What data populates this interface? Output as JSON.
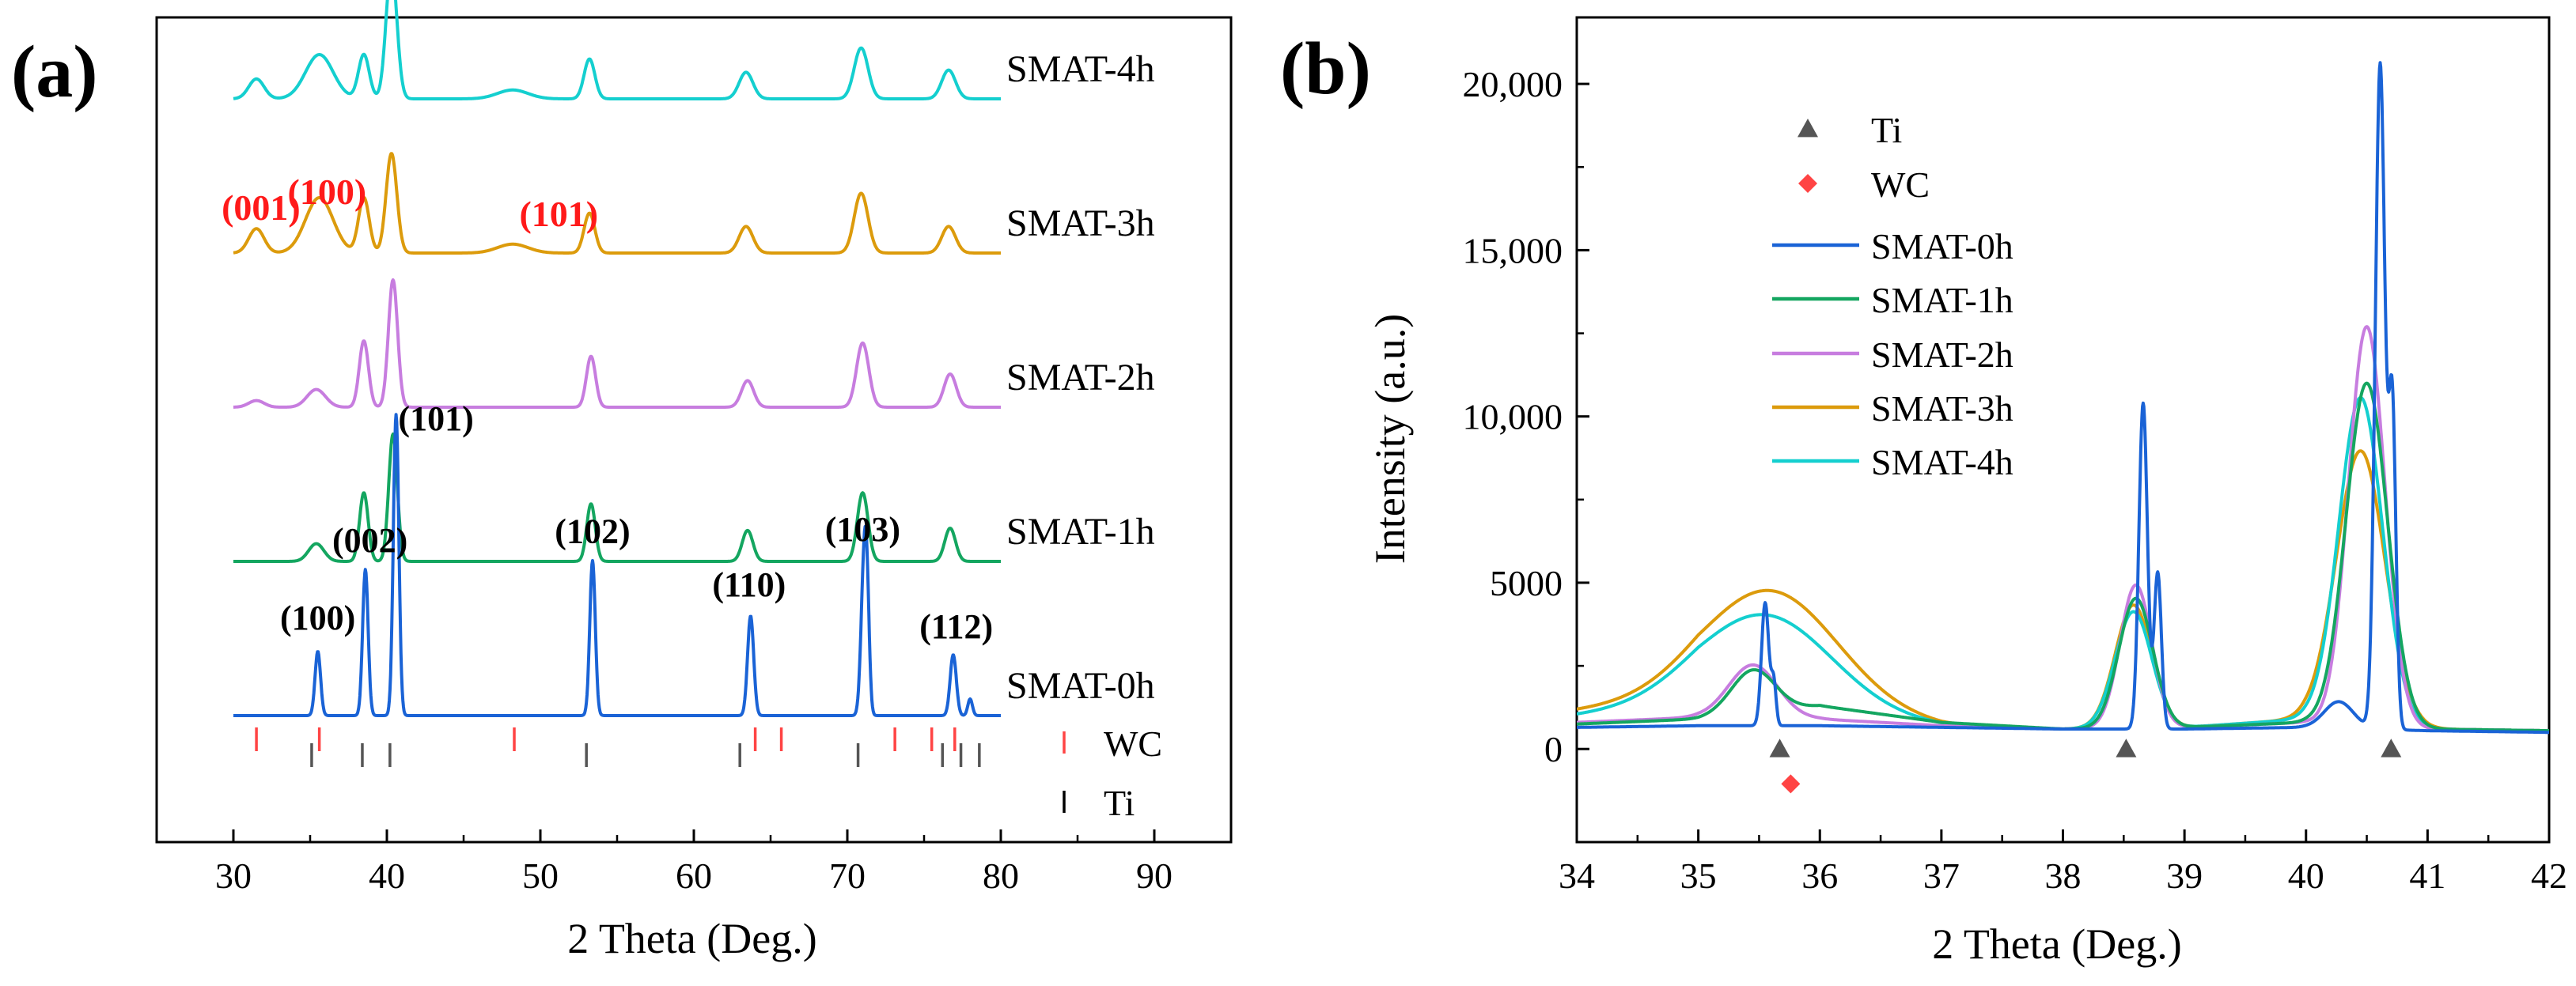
{
  "colors": {
    "SMAT-0h": "#1a63d6",
    "SMAT-1h": "#14a660",
    "SMAT-2h": "#c77ddf",
    "SMAT-3h": "#dc9b0c",
    "SMAT-4h": "#14cfcf",
    "axis": "#000000",
    "hkl_red": "#ff1a1a",
    "ti_mark": "#555555",
    "wc_mark": "#ff4444"
  },
  "chart_data": [
    {
      "type": "line",
      "panel_label": "(a)",
      "title": "",
      "xlabel": "2 Theta (Deg.)",
      "ylabel": "",
      "xlim": [
        25,
        95
      ],
      "x_ticks": [
        30,
        40,
        50,
        60,
        70,
        80,
        90
      ],
      "y_ticks_shown": false,
      "series": [
        {
          "name": "SMAT-4h",
          "key": "SMAT-4h",
          "label": "SMAT-4h",
          "offset": 4,
          "peaks": [
            [
              31.5,
              0.18,
              0.5
            ],
            [
              35.6,
              0.4,
              0.9
            ],
            [
              38.5,
              0.4,
              0.35
            ],
            [
              40.3,
              1.2,
              0.35
            ],
            [
              48.2,
              0.08,
              1.0
            ],
            [
              53.2,
              0.36,
              0.35
            ],
            [
              63.4,
              0.24,
              0.45
            ],
            [
              70.9,
              0.46,
              0.45
            ],
            [
              76.6,
              0.26,
              0.45
            ]
          ]
        },
        {
          "name": "SMAT-3h",
          "key": "SMAT-3h",
          "label": "SMAT-3h",
          "offset": 3,
          "peaks": [
            [
              31.5,
              0.22,
              0.5
            ],
            [
              35.6,
              0.5,
              0.9
            ],
            [
              38.5,
              0.5,
              0.35
            ],
            [
              40.3,
              0.9,
              0.35
            ],
            [
              48.2,
              0.08,
              1.0
            ],
            [
              53.2,
              0.36,
              0.35
            ],
            [
              63.4,
              0.24,
              0.45
            ],
            [
              70.9,
              0.54,
              0.45
            ],
            [
              76.6,
              0.24,
              0.45
            ]
          ]
        },
        {
          "name": "SMAT-2h",
          "key": "SMAT-2h",
          "label": "SMAT-2h",
          "offset": 2,
          "peaks": [
            [
              31.5,
              0.06,
              0.5
            ],
            [
              35.4,
              0.16,
              0.6
            ],
            [
              38.5,
              0.6,
              0.3
            ],
            [
              40.4,
              1.15,
              0.3
            ],
            [
              53.3,
              0.46,
              0.3
            ],
            [
              63.5,
              0.24,
              0.4
            ],
            [
              71.0,
              0.58,
              0.4
            ],
            [
              76.7,
              0.3,
              0.4
            ]
          ]
        },
        {
          "name": "SMAT-1h",
          "key": "SMAT-1h",
          "label": "SMAT-1h",
          "offset": 1,
          "peaks": [
            [
              35.4,
              0.16,
              0.5
            ],
            [
              38.5,
              0.62,
              0.28
            ],
            [
              40.4,
              1.15,
              0.28
            ],
            [
              53.3,
              0.52,
              0.28
            ],
            [
              63.5,
              0.28,
              0.35
            ],
            [
              71.0,
              0.62,
              0.35
            ],
            [
              76.7,
              0.3,
              0.35
            ]
          ]
        },
        {
          "name": "SMAT-0h",
          "key": "SMAT-0h",
          "label": "SMAT-0h",
          "offset": 0,
          "peaks": [
            [
              35.5,
              0.58,
              0.18
            ],
            [
              38.6,
              1.32,
              0.18
            ],
            [
              40.6,
              2.72,
              0.18
            ],
            [
              53.4,
              1.4,
              0.18
            ],
            [
              63.7,
              0.9,
              0.2
            ],
            [
              71.1,
              1.38,
              0.2
            ],
            [
              71.3,
              0.6,
              0.15
            ],
            [
              76.9,
              0.55,
              0.2
            ],
            [
              78.0,
              0.15,
              0.15
            ]
          ]
        }
      ],
      "reference_ticks": [
        {
          "name": "WC",
          "color_key": "wc_mark",
          "positions": [
            31.5,
            35.6,
            48.3,
            64.0,
            65.7,
            73.1,
            75.5,
            77.0
          ]
        },
        {
          "name": "Ti",
          "color_key": "ti_mark",
          "positions": [
            35.1,
            38.4,
            40.2,
            53.0,
            63.0,
            70.7,
            76.2,
            77.4,
            78.6
          ]
        }
      ],
      "annotations": [
        {
          "text": "(001)",
          "x": 31.8,
          "y": 4.48,
          "color_key": "hkl_red",
          "fs": 46
        },
        {
          "text": "(100)",
          "x": 36.1,
          "y": 4.62,
          "color_key": "hkl_red",
          "fs": 46
        },
        {
          "text": "(101)",
          "x": 51.2,
          "y": 4.42,
          "color_key": "hkl_red",
          "fs": 46
        },
        {
          "text": "(100)",
          "x": 35.5,
          "y": 0.78,
          "color_key": "axis",
          "fs": 44
        },
        {
          "text": "(002)",
          "x": 38.9,
          "y": 1.48,
          "color_key": "axis",
          "fs": 44
        },
        {
          "text": "(101)",
          "x": 43.2,
          "y": 2.58,
          "color_key": "axis",
          "fs": 44
        },
        {
          "text": "(102)",
          "x": 53.4,
          "y": 1.56,
          "color_key": "axis",
          "fs": 44
        },
        {
          "text": "(110)",
          "x": 63.6,
          "y": 1.08,
          "color_key": "axis",
          "fs": 44
        },
        {
          "text": "(103)",
          "x": 71.0,
          "y": 1.58,
          "color_key": "axis",
          "fs": 44
        },
        {
          "text": "(112)",
          "x": 77.1,
          "y": 0.7,
          "color_key": "axis",
          "fs": 44
        }
      ],
      "legend": [
        {
          "label": "WC",
          "color_key": "wc_mark"
        },
        {
          "label": "Ti",
          "color_key": "axis"
        }
      ]
    },
    {
      "type": "line",
      "panel_label": "(b)",
      "title": "",
      "xlabel": "2 Theta (Deg.)",
      "ylabel": "Intensity (a.u.)",
      "xlim": [
        34,
        42
      ],
      "ylim": [
        -2800,
        22000
      ],
      "x_ticks": [
        34,
        35,
        36,
        37,
        38,
        39,
        40,
        41,
        42
      ],
      "y_ticks": [
        0,
        5000,
        10000,
        15000,
        20000
      ],
      "y_tick_labels": [
        "0",
        "5000",
        "10,000",
        "15,000",
        "20,000"
      ],
      "legend_position": "top-left",
      "legend": [
        {
          "label": "Ti",
          "symbol": "triangle",
          "color_key": "ti_mark"
        },
        {
          "label": "WC",
          "symbol": "diamond",
          "color_key": "wc_mark"
        },
        {
          "label": "SMAT-0h",
          "symbol": "line",
          "color_key": "SMAT-0h"
        },
        {
          "label": "SMAT-1h",
          "symbol": "line",
          "color_key": "SMAT-1h"
        },
        {
          "label": "SMAT-2h",
          "symbol": "line",
          "color_key": "SMAT-2h"
        },
        {
          "label": "SMAT-3h",
          "symbol": "line",
          "color_key": "SMAT-3h"
        },
        {
          "label": "SMAT-4h",
          "symbol": "line",
          "color_key": "SMAT-4h"
        }
      ],
      "markers": [
        {
          "type": "Ti",
          "x": 35.67,
          "y": 0
        },
        {
          "type": "Ti",
          "x": 38.52,
          "y": 0
        },
        {
          "type": "Ti",
          "x": 40.7,
          "y": 0
        },
        {
          "type": "WC",
          "x": 35.76,
          "y": -1050
        }
      ],
      "series": [
        {
          "name": "SMAT-3h",
          "key": "SMAT-3h",
          "baseline": [
            [
              34,
              1150
            ],
            [
              35,
              1500
            ],
            [
              36,
              1100
            ],
            [
              37,
              700
            ],
            [
              38,
              600
            ],
            [
              39,
              650
            ],
            [
              40,
              900
            ],
            [
              41,
              600
            ],
            [
              42,
              550
            ]
          ],
          "peaks": [
            [
              35.6,
              3500,
              0.55
            ],
            [
              38.58,
              3700,
              0.15
            ],
            [
              40.45,
              8200,
              0.2
            ]
          ]
        },
        {
          "name": "SMAT-4h",
          "key": "SMAT-4h",
          "baseline": [
            [
              34,
              1000
            ],
            [
              35,
              1300
            ],
            [
              36,
              1000
            ],
            [
              37,
              700
            ],
            [
              38,
              600
            ],
            [
              39,
              650
            ],
            [
              40,
              900
            ],
            [
              41,
              600
            ],
            [
              42,
              550
            ]
          ],
          "peaks": [
            [
              35.55,
              2900,
              0.55
            ],
            [
              38.58,
              3500,
              0.15
            ],
            [
              40.45,
              9800,
              0.18
            ]
          ]
        },
        {
          "name": "SMAT-2h",
          "key": "SMAT-2h",
          "baseline": [
            [
              34,
              800
            ],
            [
              35,
              950
            ],
            [
              36,
              900
            ],
            [
              37,
              700
            ],
            [
              38,
              600
            ],
            [
              39,
              650
            ],
            [
              40,
              800
            ],
            [
              41,
              600
            ],
            [
              42,
              550
            ]
          ],
          "peaks": [
            [
              35.45,
              1600,
              0.2
            ],
            [
              38.6,
              4300,
              0.13
            ],
            [
              40.5,
              12000,
              0.15
            ]
          ]
        },
        {
          "name": "SMAT-1h",
          "key": "SMAT-1h",
          "baseline": [
            [
              34,
              750
            ],
            [
              35,
              900
            ],
            [
              36,
              1300
            ],
            [
              37,
              800
            ],
            [
              38,
              600
            ],
            [
              39,
              650
            ],
            [
              40,
              800
            ],
            [
              41,
              600
            ],
            [
              42,
              550
            ]
          ],
          "peaks": [
            [
              35.45,
              1300,
              0.18
            ],
            [
              38.6,
              3900,
              0.14
            ],
            [
              40.5,
              10300,
              0.17
            ]
          ]
        },
        {
          "name": "SMAT-0h",
          "key": "SMAT-0h",
          "baseline": [
            [
              34,
              650
            ],
            [
              35,
              700
            ],
            [
              36,
              700
            ],
            [
              37,
              650
            ],
            [
              38,
              600
            ],
            [
              39,
              600
            ],
            [
              40,
              650
            ],
            [
              41,
              550
            ],
            [
              42,
              500
            ]
          ],
          "peaks": [
            [
              35.55,
              3700,
              0.03
            ],
            [
              35.62,
              1300,
              0.02
            ],
            [
              38.66,
              9800,
              0.035
            ],
            [
              38.78,
              4700,
              0.03
            ],
            [
              40.27,
              800,
              0.12
            ],
            [
              40.61,
              20000,
              0.04
            ],
            [
              40.71,
              9600,
              0.03
            ]
          ]
        }
      ]
    }
  ]
}
